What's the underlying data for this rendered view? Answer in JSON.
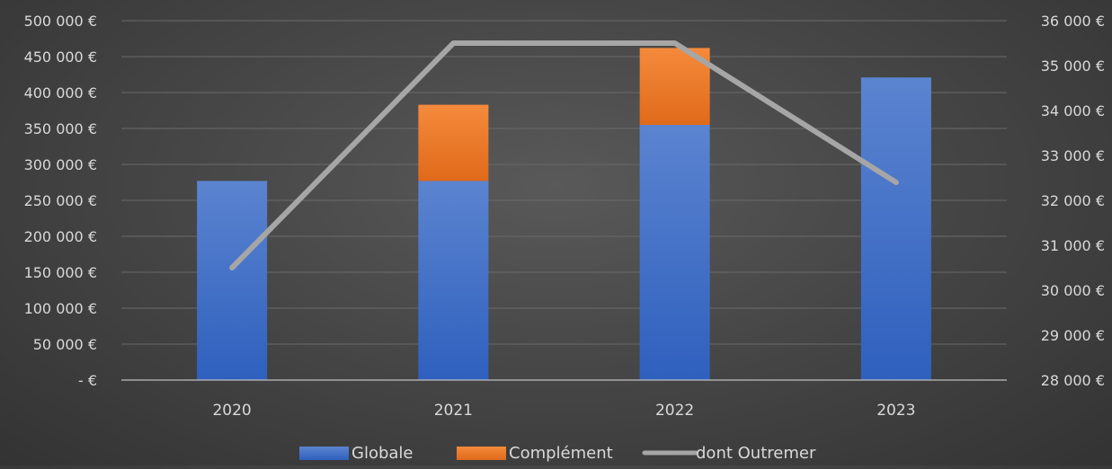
{
  "chart_data": {
    "type": "bar",
    "stacked": true,
    "categories": [
      "2020",
      "2021",
      "2022",
      "2023"
    ],
    "series": [
      {
        "name": "Globale",
        "type": "bar",
        "axis": "left",
        "color": "#4472C4",
        "values": [
          277000,
          277000,
          355000,
          421000
        ]
      },
      {
        "name": "Complément",
        "type": "bar",
        "axis": "left",
        "color": "#ED7D31",
        "values": [
          0,
          106000,
          107000,
          0
        ]
      },
      {
        "name": "dont Outremer",
        "type": "line",
        "axis": "right",
        "color": "#A5A5A5",
        "values": [
          30500,
          35500,
          35500,
          32400
        ]
      }
    ],
    "y_left": {
      "ylim": [
        0,
        500000
      ],
      "tick_labels": [
        "- €",
        "50 000 €",
        "100 000 €",
        "150 000 €",
        "200 000 €",
        "250 000 €",
        "300 000 €",
        "350 000 €",
        "400 000 €",
        "450 000 €",
        "500 000 €"
      ]
    },
    "y_right": {
      "ylim": [
        28000,
        36000
      ],
      "tick_labels": [
        "28 000 €",
        "29 000 €",
        "30 000 €",
        "31 000 €",
        "32 000 €",
        "33 000 €",
        "34 000 €",
        "35 000 €",
        "36 000 €"
      ]
    },
    "grid": true,
    "legend_position": "bottom"
  }
}
